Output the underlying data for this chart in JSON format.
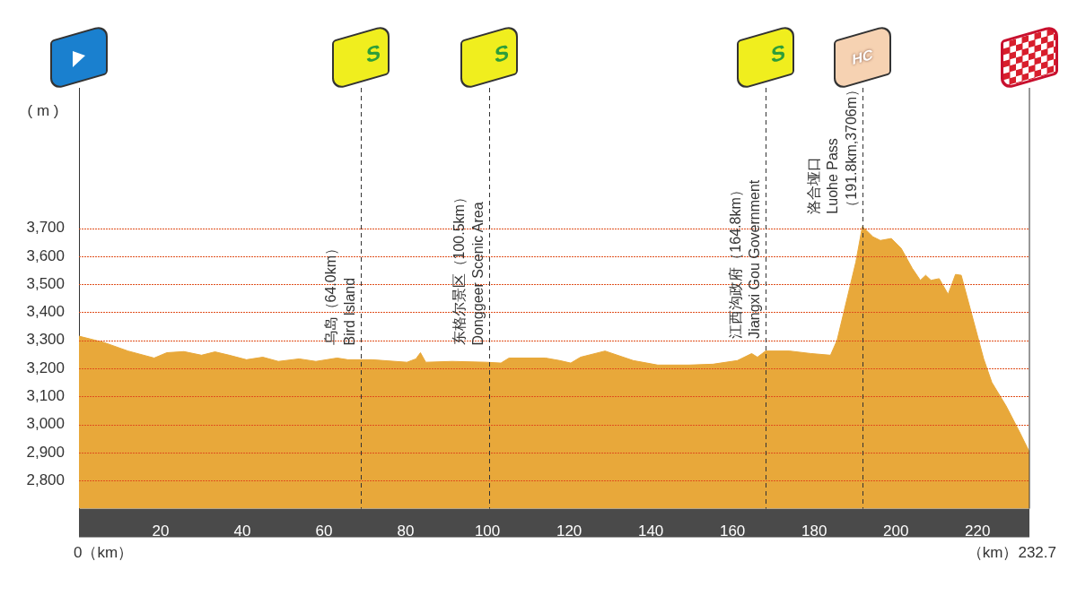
{
  "chart_data": {
    "type": "area",
    "ylabel": "( m )",
    "x": [
      0,
      6,
      12,
      18.4,
      21.5,
      25.7,
      30,
      33.3,
      36.8,
      41,
      45,
      48.8,
      53.9,
      58,
      63.2,
      65.8,
      71.7,
      80.3,
      82.5,
      83.6,
      84.9,
      91.4,
      99.8,
      103.3,
      105.3,
      114.2,
      117.7,
      120.4,
      122.8,
      128.8,
      135.7,
      141.7,
      149.4,
      155.2,
      161.2,
      164.7,
      166.1,
      168.1,
      174,
      179.2,
      184,
      185.6,
      190.2,
      191.8,
      194.4,
      196.2,
      198.9,
      201.3,
      204,
      206,
      207.3,
      208.6,
      210.6,
      212.8,
      214.6,
      216,
      218.4,
      221.5,
      223.5,
      227,
      230.4,
      232.7
    ],
    "series": [
      {
        "color": "#e8a83a",
        "values": [
          3315,
          3293,
          3262,
          3237,
          3256,
          3260,
          3247,
          3259,
          3247,
          3231,
          3240,
          3225,
          3234,
          3225,
          3237,
          3231,
          3231,
          3222,
          3234,
          3256,
          3222,
          3225,
          3222,
          3219,
          3237,
          3237,
          3228,
          3219,
          3240,
          3262,
          3228,
          3212,
          3212,
          3215,
          3228,
          3253,
          3240,
          3262,
          3262,
          3253,
          3247,
          3300,
          3579,
          3706,
          3669,
          3656,
          3663,
          3628,
          3557,
          3514,
          3532,
          3514,
          3520,
          3464,
          3535,
          3532,
          3402,
          3234,
          3150,
          3066,
          2970,
          2902
        ]
      }
    ],
    "xlim": [
      0,
      232.7
    ],
    "xticks": [
      20,
      40,
      60,
      80,
      100,
      120,
      140,
      160,
      180,
      200,
      220
    ],
    "ylim": [
      2700,
      4200
    ],
    "yticks": [
      {
        "value": 2800,
        "label": "2,800"
      },
      {
        "value": 2900,
        "label": "2,900"
      },
      {
        "value": 3000,
        "label": "3,000"
      },
      {
        "value": 3100,
        "label": "3,100"
      },
      {
        "value": 3200,
        "label": "3,200"
      },
      {
        "value": 3300,
        "label": "3,300"
      },
      {
        "value": 3400,
        "label": "3,400"
      },
      {
        "value": 3500,
        "label": "3,500"
      },
      {
        "value": 3600,
        "label": "3,600"
      },
      {
        "value": 3700,
        "label": "3,700"
      }
    ],
    "grid": "y",
    "legend": false,
    "ref_lines": [
      {
        "axis": "x",
        "value": 69,
        "label": "乌岛（64.0km）\nBird Island",
        "line_style": "dashed"
      },
      {
        "axis": "x",
        "value": 100.5,
        "label": "东格尔景区（100.5km）\nDonggeer Scenic Area",
        "line_style": "dashed"
      },
      {
        "axis": "x",
        "value": 168,
        "label": "江西沟政府（164.8km）\nJiangxi Gou Government",
        "line_style": "dashed"
      },
      {
        "axis": "x",
        "value": 191.8,
        "label": "洛合垭口\nLuohe Pass\n（191.8km,3706m）",
        "line_style": "dashed"
      }
    ],
    "annotations": [
      "0（km）",
      "（km）232.7",
      "S",
      "S",
      "S",
      "HC"
    ]
  }
}
